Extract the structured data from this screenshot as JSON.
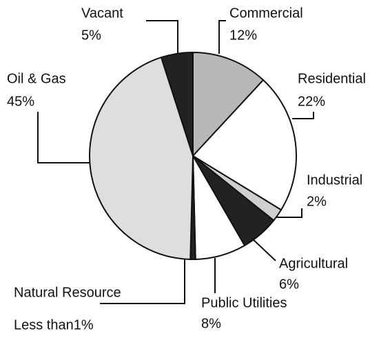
{
  "chart_data": {
    "type": "pie",
    "categories": [
      "Commercial",
      "Residential",
      "Industrial",
      "Agricultural",
      "Public Utilities",
      "Natural Resource",
      "Oil & Gas",
      "Vacant"
    ],
    "values": [
      12,
      22,
      2,
      6,
      8,
      0.8,
      45,
      5
    ],
    "value_labels": [
      "12%",
      "22%",
      "2%",
      "6%",
      "8%",
      "Less than1%",
      "45%",
      "5%"
    ],
    "colors": [
      "#b8b8b8",
      "#ffffff",
      "#cfcfcf",
      "#222222",
      "#ffffff",
      "#222222",
      "#dedede",
      "#222222"
    ]
  }
}
